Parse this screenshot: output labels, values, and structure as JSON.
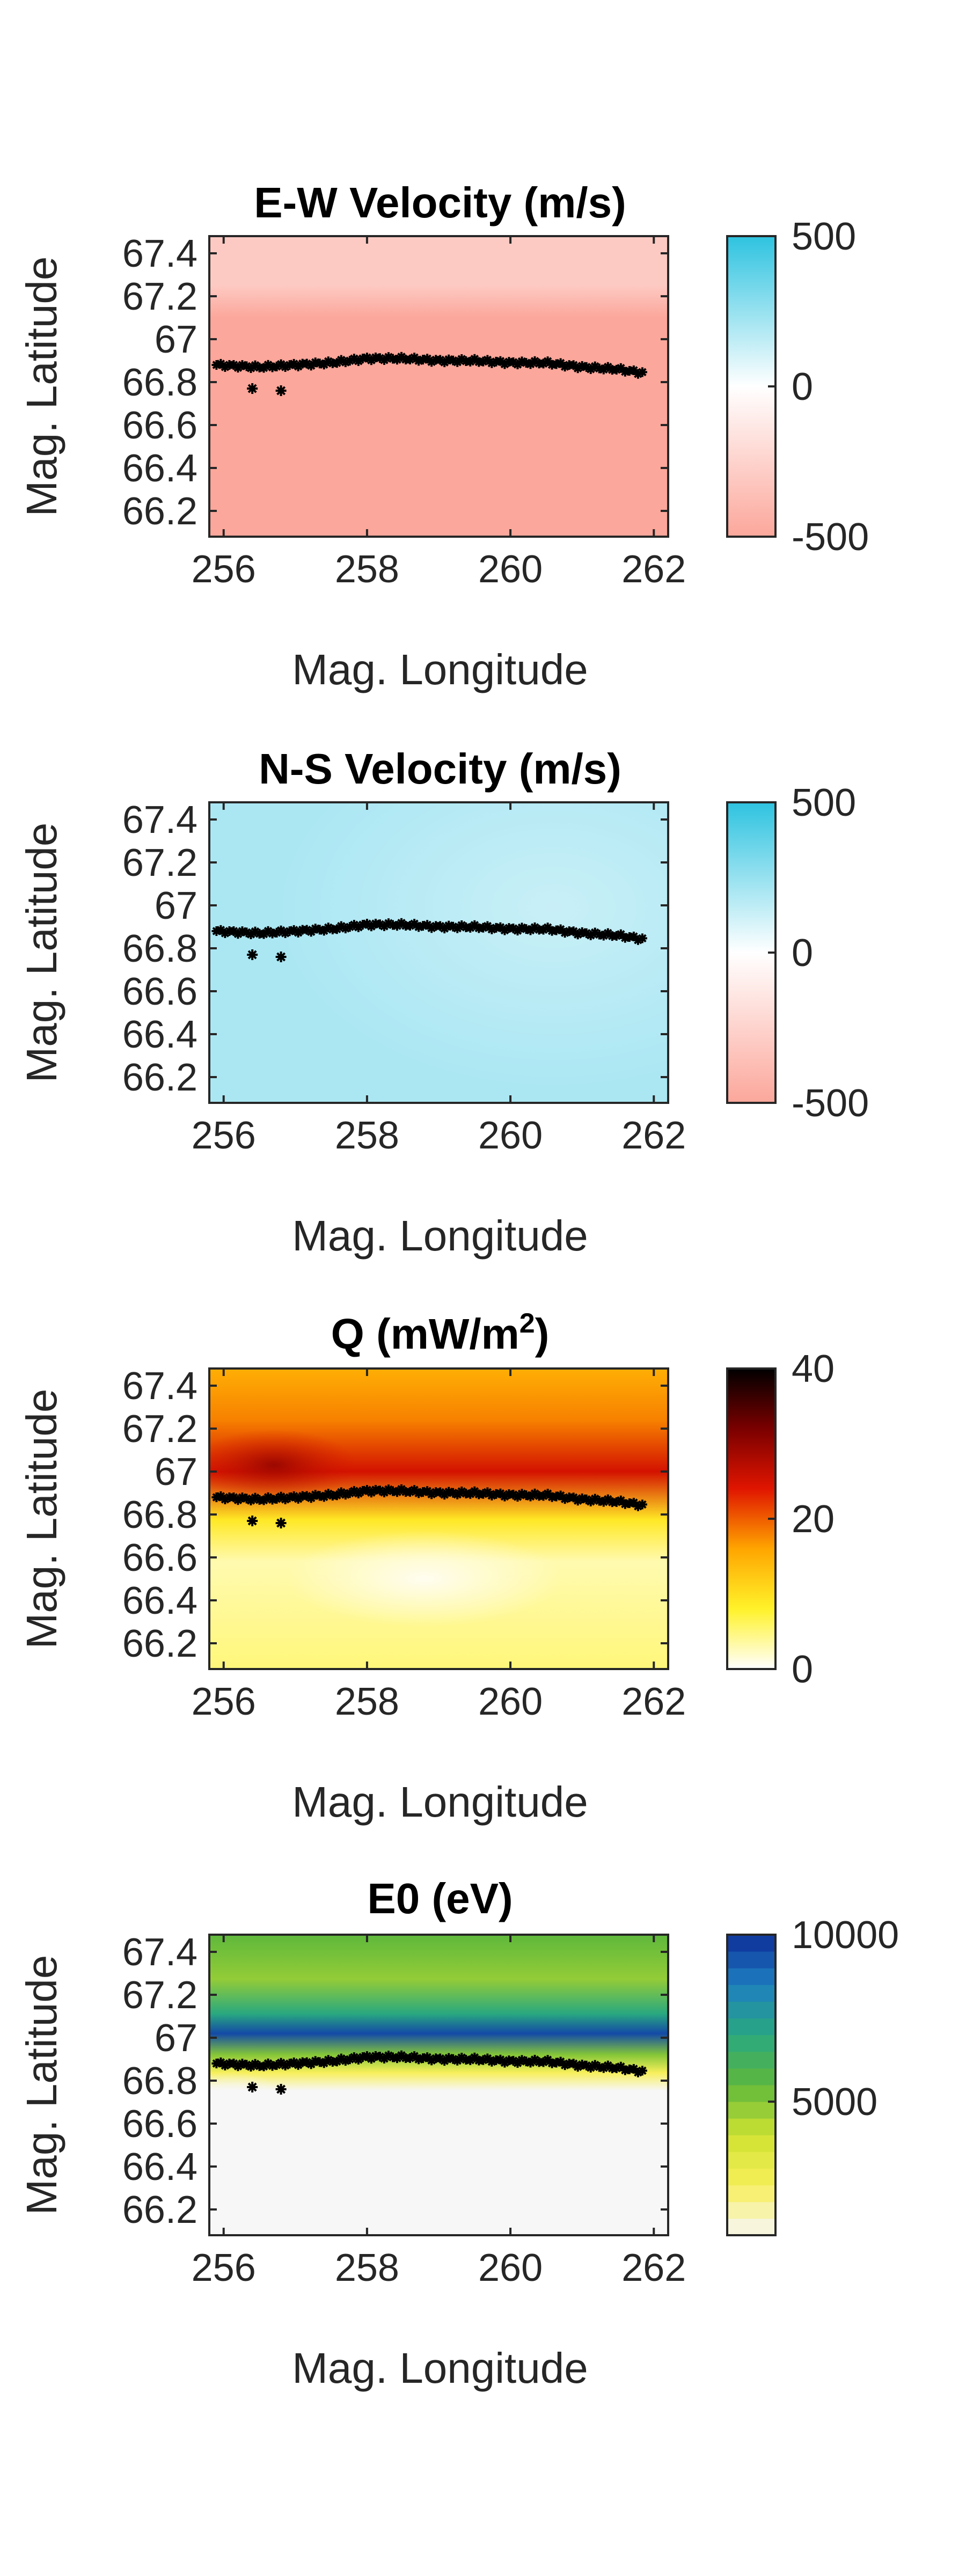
{
  "chart_data": [
    {
      "type": "heatmap",
      "title": "E-W Velocity (m/s)",
      "xlabel": "Mag. Longitude",
      "ylabel": "Mag. Latitude",
      "xlim": [
        255.8,
        262.2
      ],
      "ylim": [
        66.08,
        67.48
      ],
      "xticks": [
        "256",
        "258",
        "260",
        "262"
      ],
      "yticks": [
        "66.2",
        "66.4",
        "66.6",
        "66.8",
        "67",
        "67.2",
        "67.4"
      ],
      "colorbar": {
        "min": -500,
        "max": 500,
        "ticks": [
          "500",
          "0",
          "-500"
        ],
        "colors": [
          "#fca79b",
          "#ffffff",
          "#2ec3e0"
        ]
      },
      "field": {
        "north_value": -300,
        "south_value": -500,
        "transition_lat": 67.1
      },
      "boundary": {
        "lon": [
          255.9,
          256.5,
          257.0,
          257.5,
          258.0,
          258.5,
          259.0,
          259.5,
          260.0,
          260.5,
          261.0,
          261.5,
          261.9
        ],
        "lat": [
          66.88,
          66.87,
          66.88,
          66.89,
          66.91,
          66.91,
          66.9,
          66.9,
          66.89,
          66.89,
          66.87,
          66.86,
          66.84
        ]
      },
      "isolated_points": [
        {
          "lon": 256.4,
          "lat": 66.77
        },
        {
          "lon": 256.8,
          "lat": 66.76
        }
      ]
    },
    {
      "type": "heatmap",
      "title": "N-S Velocity (m/s)",
      "xlabel": "Mag. Longitude",
      "ylabel": "Mag. Latitude",
      "xlim": [
        255.8,
        262.2
      ],
      "ylim": [
        66.08,
        67.48
      ],
      "xticks": [
        "256",
        "258",
        "260",
        "262"
      ],
      "yticks": [
        "66.2",
        "66.4",
        "66.6",
        "66.8",
        "67",
        "67.2",
        "67.4"
      ],
      "colorbar": {
        "min": -500,
        "max": 500,
        "ticks": [
          "500",
          "0",
          "-500"
        ],
        "colors": [
          "#fca79b",
          "#ffffff",
          "#2ec3e0"
        ]
      },
      "field": {
        "value": 200
      },
      "boundary": {
        "lon": [
          255.9,
          256.5,
          257.0,
          257.5,
          258.0,
          258.5,
          259.0,
          259.5,
          260.0,
          260.5,
          261.0,
          261.5,
          261.9
        ],
        "lat": [
          66.88,
          66.87,
          66.88,
          66.89,
          66.91,
          66.91,
          66.9,
          66.9,
          66.89,
          66.89,
          66.87,
          66.86,
          66.84
        ]
      },
      "isolated_points": [
        {
          "lon": 256.4,
          "lat": 66.77
        },
        {
          "lon": 256.8,
          "lat": 66.76
        }
      ]
    },
    {
      "type": "heatmap",
      "title": "Q (mW/m²)",
      "title_main": "Q (mW/m",
      "title_sup": "2",
      "title_end": ")",
      "xlabel": "Mag. Longitude",
      "ylabel": "Mag. Latitude",
      "xlim": [
        255.8,
        262.2
      ],
      "ylim": [
        66.08,
        67.48
      ],
      "xticks": [
        "256",
        "258",
        "260",
        "262"
      ],
      "yticks": [
        "66.2",
        "66.4",
        "66.6",
        "66.8",
        "67",
        "67.2",
        "67.4"
      ],
      "colorbar": {
        "min": 0,
        "max": 40,
        "ticks": [
          "40",
          "20",
          "0"
        ],
        "colors": [
          "#ffffff",
          "#fff22a",
          "#ffa500",
          "#e01500",
          "#7a0000",
          "#000000"
        ]
      },
      "field": {
        "peak_value": 25,
        "peak_lat": 67.0,
        "north_value": 15,
        "south_value": 3
      },
      "boundary": {
        "lon": [
          255.9,
          256.5,
          257.0,
          257.5,
          258.0,
          258.5,
          259.0,
          259.5,
          260.0,
          260.5,
          261.0,
          261.5,
          261.9
        ],
        "lat": [
          66.88,
          66.87,
          66.88,
          66.89,
          66.91,
          66.91,
          66.9,
          66.9,
          66.89,
          66.89,
          66.87,
          66.86,
          66.84
        ]
      },
      "isolated_points": [
        {
          "lon": 256.4,
          "lat": 66.77
        },
        {
          "lon": 256.8,
          "lat": 66.76
        }
      ]
    },
    {
      "type": "heatmap",
      "title": "E0 (eV)",
      "xlabel": "Mag. Longitude",
      "ylabel": "Mag. Latitude",
      "xlim": [
        255.8,
        262.2
      ],
      "ylim": [
        66.08,
        67.48
      ],
      "xticks": [
        "256",
        "258",
        "260",
        "262"
      ],
      "yticks": [
        "66.2",
        "66.4",
        "66.6",
        "66.8",
        "67",
        "67.2",
        "67.4"
      ],
      "colorbar": {
        "min": 1000,
        "max": 10000,
        "ticks": [
          "10000",
          "5000"
        ],
        "tick_values": [
          10000,
          5000
        ],
        "colors": [
          "#f7f7f7",
          "#f7ef5a",
          "#cfe231",
          "#5fb83c",
          "#29a87f",
          "#1e7fc0",
          "#0d2f9a"
        ],
        "discrete_levels": 18
      },
      "field": {
        "core_value": 9500,
        "core_lat": 67.02,
        "north_value": 7000,
        "south_value": 1000
      },
      "boundary": {
        "lon": [
          255.9,
          256.5,
          257.0,
          257.5,
          258.0,
          258.5,
          259.0,
          259.5,
          260.0,
          260.5,
          261.0,
          261.5,
          261.9
        ],
        "lat": [
          66.88,
          66.87,
          66.88,
          66.89,
          66.91,
          66.91,
          66.9,
          66.9,
          66.89,
          66.89,
          66.87,
          66.86,
          66.84
        ]
      },
      "isolated_points": [
        {
          "lon": 256.4,
          "lat": 66.77
        },
        {
          "lon": 256.8,
          "lat": 66.76
        }
      ]
    }
  ]
}
